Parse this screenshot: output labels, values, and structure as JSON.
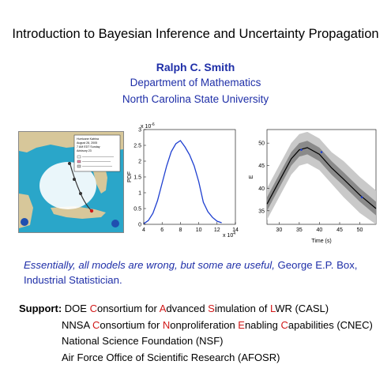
{
  "title": "Introduction to Bayesian Inference and Uncertainty Propagation",
  "author": {
    "name": "Ralph C. Smith",
    "department": "Department of Mathematics",
    "university": "North Carolina State University"
  },
  "figures": {
    "map": {
      "legend_lines": [
        "Hurricane Katrina",
        "August 28, 2005",
        "7 AM EDT Sunday",
        "Advisory 23"
      ]
    },
    "pdf_plot": {
      "ylabel": "PDF",
      "y_exponent": "-6",
      "x_exponent": "4",
      "x_ticks": [
        "4",
        "6",
        "8",
        "10",
        "12",
        "14"
      ],
      "y_ticks": [
        "0",
        "0.5",
        "1",
        "1.5",
        "2",
        "2.5",
        "3"
      ]
    },
    "e_plot": {
      "ylabel": "E",
      "xlabel": "Time (s)",
      "x_ticks": [
        "30",
        "35",
        "40",
        "45",
        "50"
      ],
      "y_ticks": [
        "35",
        "40",
        "45",
        "50"
      ]
    }
  },
  "chart_data": [
    {
      "type": "line",
      "title": "",
      "xlabel": "",
      "ylabel": "PDF",
      "x_scale": "x 10^4",
      "y_scale": "x 10^-6",
      "xlim": [
        4,
        14
      ],
      "ylim": [
        0,
        3
      ],
      "series": [
        {
          "x": [
            4.0,
            4.5,
            5.0,
            5.5,
            6.0,
            6.5,
            7.0,
            7.5,
            8.0,
            8.5,
            9.0,
            9.5,
            10.0,
            10.5,
            11.0,
            11.5,
            12.0,
            12.5
          ],
          "values": [
            0.02,
            0.12,
            0.35,
            0.75,
            1.3,
            1.85,
            2.3,
            2.55,
            2.65,
            2.45,
            2.2,
            1.85,
            1.35,
            0.7,
            0.4,
            0.22,
            0.1,
            0.05
          ]
        }
      ]
    },
    {
      "type": "area",
      "title": "",
      "xlabel": "Time (s)",
      "ylabel": "E",
      "xlim": [
        27,
        54
      ],
      "ylim": [
        32,
        53
      ],
      "series": [
        {
          "x": [
            27,
            30,
            33,
            35,
            37,
            40,
            43,
            46,
            50,
            54
          ],
          "values": [
            36.5,
            41.5,
            46.5,
            48.5,
            49.0,
            47.5,
            44.5,
            42.0,
            38.5,
            35.5
          ]
        }
      ],
      "bands": [
        {
          "x": [
            27,
            30,
            33,
            35,
            37,
            40,
            43,
            46,
            50,
            54
          ],
          "lower": [
            33.0,
            38.0,
            43.0,
            45.0,
            45.5,
            44.0,
            41.0,
            38.0,
            34.5,
            31.5
          ],
          "upper": [
            40.0,
            45.0,
            50.0,
            52.0,
            52.5,
            51.0,
            48.0,
            46.0,
            42.5,
            39.5
          ]
        },
        {
          "x": [
            27,
            30,
            33,
            35,
            37,
            40,
            43,
            46,
            50,
            54
          ],
          "lower": [
            35.0,
            40.0,
            45.0,
            47.0,
            47.5,
            46.0,
            43.0,
            40.5,
            37.0,
            34.0
          ],
          "upper": [
            38.0,
            43.0,
            48.0,
            50.0,
            50.5,
            49.0,
            46.0,
            43.5,
            40.0,
            37.0
          ]
        }
      ],
      "points": {
        "x": [
          35.5,
          40.5,
          50.5
        ],
        "values": [
          48.5,
          48.0,
          38.0
        ]
      }
    }
  ],
  "quote": {
    "italic": "Essentially, all models are wrong, but some are useful,",
    "attribution_1": " George E.P. Box,",
    "attribution_2": "Industrial Statistician."
  },
  "support": {
    "label": "Support:",
    "lines": [
      {
        "parts": [
          {
            "t": "DOE ",
            "red": false
          },
          {
            "t": "C",
            "red": true
          },
          {
            "t": "onsortium for ",
            "red": false
          },
          {
            "t": "A",
            "red": true
          },
          {
            "t": "dvanced ",
            "red": false
          },
          {
            "t": "S",
            "red": true
          },
          {
            "t": "imulation of ",
            "red": false
          },
          {
            "t": "L",
            "red": true
          },
          {
            "t": "WR (CASL)",
            "red": false
          }
        ]
      },
      {
        "parts": [
          {
            "t": "NNSA ",
            "red": false
          },
          {
            "t": "C",
            "red": true
          },
          {
            "t": "onsortium for ",
            "red": false
          },
          {
            "t": "N",
            "red": true
          },
          {
            "t": "onproliferation ",
            "red": false
          },
          {
            "t": "E",
            "red": true
          },
          {
            "t": "nabling ",
            "red": false
          },
          {
            "t": "C",
            "red": true
          },
          {
            "t": "apabilities (CNEC)",
            "red": false
          }
        ]
      },
      {
        "parts": [
          {
            "t": "National Science Foundation (NSF)",
            "red": false
          }
        ]
      },
      {
        "parts": [
          {
            "t": "Air Force Office of Scientific Research (AFOSR)",
            "red": false
          }
        ]
      }
    ]
  },
  "colors": {
    "title_blue": "#1f2fa8",
    "highlight_red": "#d11818",
    "curve_blue": "#1e3fd0",
    "band_light": "#c9c9c9",
    "band_dark": "#8a8a8a",
    "ocean": "#2aa6c9",
    "land": "#d7c79a"
  }
}
